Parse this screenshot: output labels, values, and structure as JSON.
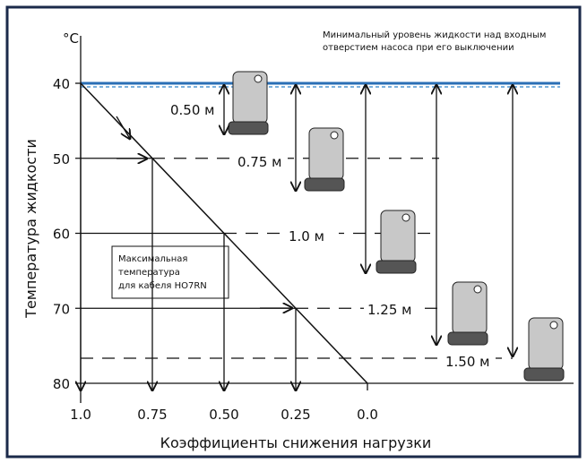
{
  "chart_data": {
    "type": "line",
    "x": [
      1.0,
      0.0
    ],
    "values": [
      40,
      80
    ],
    "color": "#111111",
    "xlim": [
      1.0,
      0.0
    ],
    "ylim": [
      40,
      80
    ],
    "xticks": [
      {
        "value": 1.0,
        "label": "1.0"
      },
      0.75,
      {
        "value": 0.5,
        "label": "0.50"
      },
      0.25,
      {
        "value": 0.0,
        "label": "0.0"
      }
    ],
    "yticks": [
      40,
      50,
      60,
      70,
      80
    ],
    "y_unit": "°C",
    "xlabel": "Коэффициенты снижения нагрузки",
    "ylabel": "Температура жидкости",
    "note": [
      "Минимальный уровень жидкости над входным",
      "отверстием насоса при его выключении"
    ],
    "box_note": [
      "Максимальная",
      "температура",
      "для кабеля HO7RN"
    ],
    "depth_labels": [
      "0.50 м",
      "0.75 м",
      "1.0 м",
      "1.25 м",
      "1.50 м"
    ]
  }
}
